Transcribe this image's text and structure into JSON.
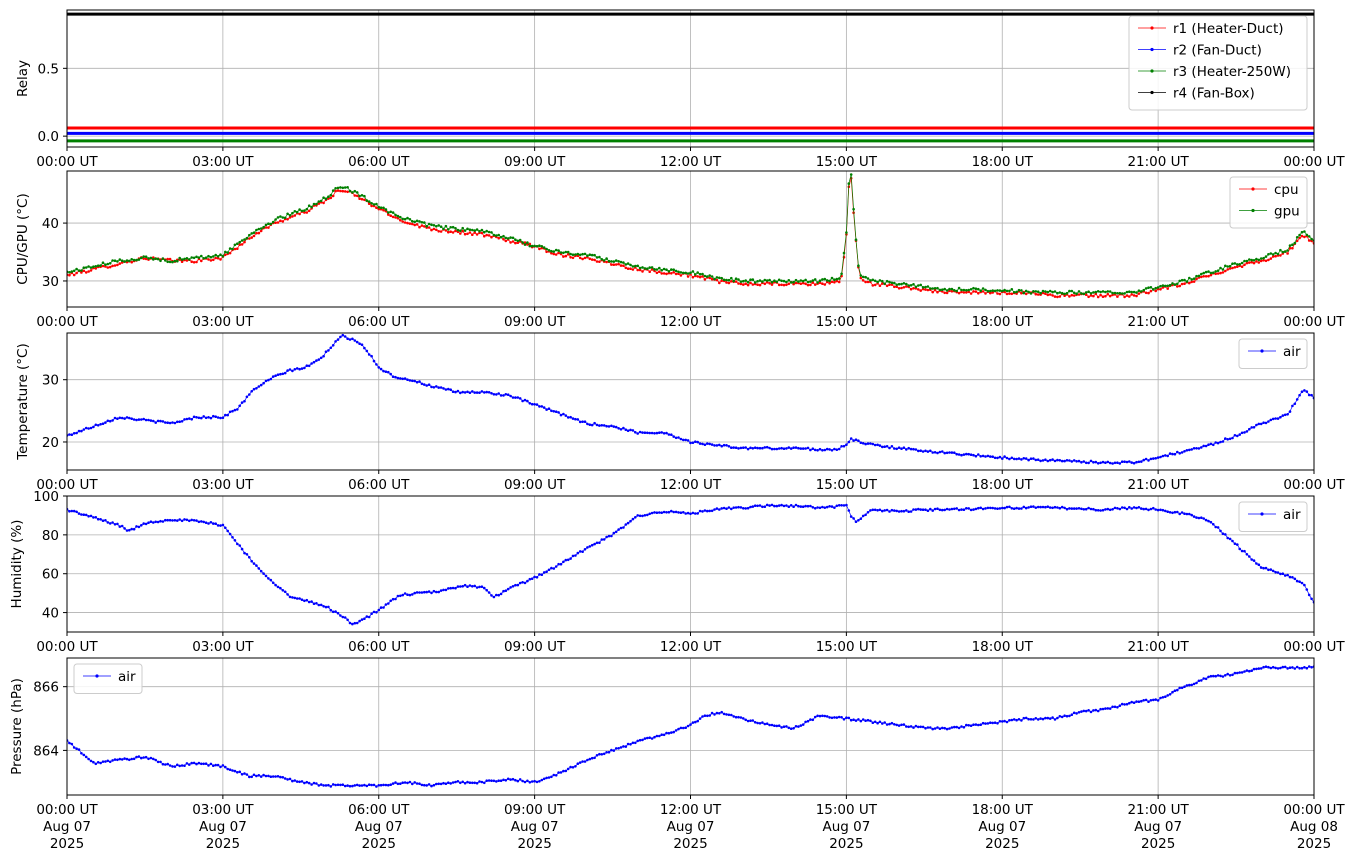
{
  "colors": {
    "red": "#ff0000",
    "blue": "#0000ff",
    "green": "#008000",
    "black": "#000000",
    "grid": "#b0b0b0"
  },
  "chart_data": [
    {
      "type": "line",
      "ylabel": "Relay",
      "ylim": [
        -0.08,
        0.93
      ],
      "yticks": [
        0.0,
        0.5
      ],
      "ytick_labels": [
        "0.0",
        "0.5"
      ],
      "xlim": [
        0,
        24
      ],
      "xtick_labels": [
        "00:00 UT",
        "03:00 UT",
        "06:00 UT",
        "09:00 UT",
        "12:00 UT",
        "15:00 UT",
        "18:00 UT",
        "21:00 UT",
        "00:00 UT"
      ],
      "grid": true,
      "legend": "top-right",
      "series": [
        {
          "name": "r1 (Heater-Duct)",
          "color": "#ff0000",
          "x": [
            0,
            24
          ],
          "y": [
            0.06,
            0.06
          ]
        },
        {
          "name": "r2 (Fan-Duct)",
          "color": "#0000ff",
          "x": [
            0,
            24
          ],
          "y": [
            0.02,
            0.02
          ]
        },
        {
          "name": "r3 (Heater-250W)",
          "color": "#008000",
          "x": [
            0,
            24
          ],
          "y": [
            -0.035,
            -0.035
          ]
        },
        {
          "name": "r4 (Fan-Box)",
          "color": "#000000",
          "x": [
            0,
            24
          ],
          "y": [
            0.9,
            0.9
          ]
        }
      ]
    },
    {
      "type": "scatter",
      "ylabel": "CPU/GPU (°C)",
      "ylim": [
        25.5,
        49
      ],
      "yticks": [
        30,
        40
      ],
      "ytick_labels": [
        "30",
        "40"
      ],
      "xlim": [
        0,
        24
      ],
      "xtick_labels": [
        "00:00 UT",
        "03:00 UT",
        "06:00 UT",
        "09:00 UT",
        "12:00 UT",
        "15:00 UT",
        "18:00 UT",
        "21:00 UT",
        "00:00 UT"
      ],
      "grid": true,
      "legend": "top-right",
      "series": [
        {
          "name": "cpu",
          "color": "#ff0000",
          "x": [
            0,
            0.5,
            1,
            1.5,
            2,
            2.5,
            3,
            3.3,
            3.6,
            4,
            4.3,
            4.6,
            5,
            5.2,
            5.4,
            5.6,
            6,
            6.3,
            6.6,
            7,
            7.5,
            8,
            8.5,
            9,
            9.5,
            10,
            10.5,
            11,
            11.5,
            12,
            12.5,
            13,
            13.5,
            14,
            14.5,
            14.9,
            15.0,
            15.05,
            15.1,
            15.15,
            15.25,
            15.5,
            16,
            16.5,
            17,
            17.5,
            18,
            18.5,
            19,
            19.5,
            20,
            20.5,
            21,
            21.5,
            22,
            22.5,
            23,
            23.5,
            23.8,
            24
          ],
          "y": [
            31,
            32,
            33,
            34,
            33.5,
            33.5,
            34,
            36,
            38,
            40,
            41,
            42,
            44,
            45.5,
            45.5,
            44.5,
            42.5,
            41,
            40,
            39,
            38.5,
            38,
            37,
            36,
            34.5,
            34,
            33,
            32,
            31.5,
            31,
            30,
            29.5,
            29.5,
            29.5,
            29.5,
            30,
            38,
            47,
            48,
            40,
            30.5,
            29.5,
            29,
            28.5,
            28,
            28,
            28,
            28,
            27.5,
            27.5,
            27.5,
            27.5,
            28.5,
            29.5,
            31,
            32.5,
            33.5,
            35,
            38,
            36.5
          ]
        },
        {
          "name": "gpu",
          "color": "#008000",
          "x": [
            0,
            0.5,
            1,
            1.5,
            2,
            2.5,
            3,
            3.3,
            3.6,
            4,
            4.3,
            4.6,
            5,
            5.2,
            5.4,
            5.6,
            6,
            6.3,
            6.6,
            7,
            7.5,
            8,
            8.5,
            9,
            9.5,
            10,
            10.5,
            11,
            11.5,
            12,
            12.5,
            13,
            13.5,
            14,
            14.5,
            14.9,
            15.0,
            15.05,
            15.1,
            15.15,
            15.25,
            15.5,
            16,
            16.5,
            17,
            17.5,
            18,
            18.5,
            19,
            19.5,
            20,
            20.5,
            21,
            21.5,
            22,
            22.5,
            23,
            23.5,
            23.8,
            24
          ],
          "y": [
            31.5,
            32.5,
            33.5,
            34,
            33.5,
            34,
            34.5,
            36.5,
            38.5,
            40.5,
            41.5,
            42.5,
            44.5,
            46,
            46,
            45,
            43,
            41.5,
            40.5,
            39.5,
            39,
            38.5,
            37.5,
            36,
            35,
            34.5,
            33.5,
            32.5,
            32,
            31.5,
            30.5,
            30,
            30,
            30,
            30,
            30.5,
            38.5,
            47.5,
            48.5,
            40.5,
            31,
            30,
            29.5,
            29,
            28.5,
            28.5,
            28.5,
            28,
            28,
            28,
            28,
            28,
            29,
            30,
            31.5,
            33,
            34,
            35.5,
            38.5,
            37
          ]
        }
      ]
    },
    {
      "type": "line",
      "ylabel": "Temperature (°C)",
      "ylim": [
        15.5,
        37.5
      ],
      "yticks": [
        20,
        30
      ],
      "ytick_labels": [
        "20",
        "30"
      ],
      "xlim": [
        0,
        24
      ],
      "xtick_labels": [
        "00:00 UT",
        "03:00 UT",
        "06:00 UT",
        "09:00 UT",
        "12:00 UT",
        "15:00 UT",
        "18:00 UT",
        "21:00 UT",
        "00:00 UT"
      ],
      "grid": true,
      "legend": "top-right",
      "series": [
        {
          "name": "air",
          "color": "#0000ff",
          "x": [
            0,
            0.5,
            1,
            1.5,
            2,
            2.5,
            3,
            3.3,
            3.6,
            4,
            4.3,
            4.6,
            4.9,
            5.1,
            5.3,
            5.5,
            5.7,
            6,
            6.3,
            6.6,
            7,
            7.5,
            8,
            8.5,
            9,
            9.5,
            10,
            10.5,
            11,
            11.5,
            12,
            12.5,
            13,
            13.5,
            14,
            14.5,
            14.8,
            15.0,
            15.1,
            15.3,
            15.6,
            16,
            17,
            18,
            19,
            20,
            20.5,
            21,
            21.5,
            22,
            22.5,
            23,
            23.5,
            23.8,
            24
          ],
          "y": [
            21,
            22.5,
            24,
            23.5,
            23,
            24,
            24,
            25.5,
            28.5,
            30.5,
            31.5,
            32,
            33.5,
            35.5,
            37,
            36.5,
            35.5,
            32,
            30.5,
            30,
            29,
            28,
            28,
            27.5,
            26,
            24.5,
            23,
            22.5,
            21.5,
            21.5,
            20,
            19.5,
            19,
            19,
            19,
            18.8,
            18.8,
            19.5,
            20.5,
            19.8,
            19.5,
            19,
            18.2,
            17.5,
            17,
            16.7,
            16.7,
            17.5,
            18.5,
            19.5,
            21,
            23,
            24.5,
            28.5,
            27
          ]
        }
      ]
    },
    {
      "type": "line",
      "ylabel": "Humidity (%)",
      "ylim": [
        30,
        100
      ],
      "yticks": [
        40,
        60,
        80,
        100
      ],
      "ytick_labels": [
        "40",
        "60",
        "80",
        "100"
      ],
      "xlim": [
        0,
        24
      ],
      "xtick_labels": [
        "00:00 UT",
        "03:00 UT",
        "06:00 UT",
        "09:00 UT",
        "12:00 UT",
        "15:00 UT",
        "18:00 UT",
        "21:00 UT",
        "00:00 UT"
      ],
      "grid": true,
      "legend": "top-right",
      "series": [
        {
          "name": "air",
          "color": "#0000ff",
          "x": [
            0,
            0.5,
            1,
            1.2,
            1.5,
            2,
            2.5,
            3,
            3.3,
            3.6,
            4,
            4.3,
            4.6,
            5,
            5.3,
            5.5,
            5.8,
            6.1,
            6.4,
            6.8,
            7.2,
            7.6,
            8,
            8.2,
            8.5,
            9,
            9.5,
            10,
            10.5,
            11,
            11.5,
            12,
            12.5,
            13,
            13.5,
            14,
            14.5,
            15,
            15.1,
            15.2,
            15.5,
            16,
            16.5,
            17,
            18,
            19,
            20,
            20.5,
            21,
            21.5,
            22,
            22.5,
            23,
            23.5,
            23.8,
            24
          ],
          "y": [
            93,
            89,
            85,
            82,
            86,
            88,
            87,
            85,
            75,
            65,
            55,
            48,
            46,
            43,
            38,
            34,
            38,
            43,
            49,
            50,
            51,
            54,
            53,
            48,
            52,
            58,
            65,
            73,
            80,
            90,
            92,
            91,
            93,
            94,
            95,
            95,
            94,
            95,
            89,
            87,
            93,
            92,
            93,
            93,
            94,
            94,
            93,
            94,
            93,
            91,
            87,
            75,
            63,
            59,
            55,
            45
          ]
        }
      ]
    },
    {
      "type": "line",
      "ylabel": "Pressure (hPa)",
      "ylim": [
        862.6,
        866.9
      ],
      "yticks": [
        864,
        866
      ],
      "ytick_labels": [
        "864",
        "866"
      ],
      "xlim": [
        0,
        24
      ],
      "xtick_labels": [
        "00:00 UT\nAug 07\n2025",
        "03:00 UT\nAug 07\n2025",
        "06:00 UT\nAug 07\n2025",
        "09:00 UT\nAug 07\n2025",
        "12:00 UT\nAug 07\n2025",
        "15:00 UT\nAug 07\n2025",
        "18:00 UT\nAug 07\n2025",
        "21:00 UT\nAug 07\n2025",
        "00:00 UT\nAug 08\n2025"
      ],
      "grid": true,
      "legend": "top-left",
      "series": [
        {
          "name": "air",
          "color": "#0000ff",
          "x": [
            0,
            0.3,
            0.5,
            1,
            1.5,
            2,
            2.5,
            3,
            3.5,
            4,
            4.5,
            5,
            5.5,
            6,
            6.5,
            7,
            7.5,
            8,
            8.5,
            9,
            9.5,
            10,
            10.5,
            11,
            11.5,
            12,
            12.3,
            12.6,
            13,
            13.5,
            14,
            14.5,
            15,
            15.5,
            16,
            16.5,
            17,
            17.5,
            18,
            18.5,
            19,
            19.5,
            20,
            20.5,
            21,
            21.5,
            22,
            22.5,
            23,
            23.5,
            24
          ],
          "y": [
            864.3,
            863.9,
            863.6,
            863.7,
            863.8,
            863.5,
            863.6,
            863.5,
            863.2,
            863.2,
            863.0,
            862.9,
            862.9,
            862.9,
            863.0,
            862.9,
            863.0,
            863.0,
            863.1,
            863.0,
            863.3,
            863.7,
            864.0,
            864.3,
            864.5,
            864.8,
            865.1,
            865.2,
            865.0,
            864.8,
            864.7,
            865.1,
            865.0,
            864.9,
            864.8,
            864.7,
            864.7,
            864.8,
            864.9,
            865.0,
            865.0,
            865.2,
            865.3,
            865.5,
            865.6,
            866.0,
            866.3,
            866.4,
            866.6,
            866.6,
            866.6
          ]
        }
      ]
    }
  ]
}
